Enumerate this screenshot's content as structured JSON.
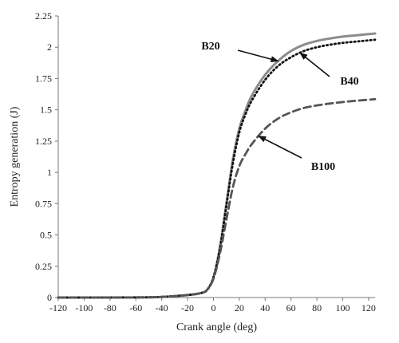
{
  "chart_data": {
    "type": "line",
    "title": "",
    "xlabel": "Crank angle (deg)",
    "ylabel": "Entropy generation (J)",
    "xlim": [
      -120,
      125
    ],
    "ylim": [
      0,
      2.25
    ],
    "x_ticks": [
      -120,
      -100,
      -80,
      -60,
      -40,
      -20,
      0,
      20,
      40,
      60,
      80,
      100,
      120
    ],
    "y_ticks": [
      0,
      0.25,
      0.5,
      0.75,
      1,
      1.25,
      1.5,
      1.75,
      2,
      2.25
    ],
    "y_tick_labels": [
      "0",
      "0.25",
      "0.5",
      "0.75",
      "1",
      "1.25",
      "1.5",
      "1.75",
      "2",
      "2.25"
    ],
    "grid": false,
    "legend": "none (series identified by arrow annotations)",
    "series": [
      {
        "name": "B20",
        "style": "solid",
        "color": "#8c8c8c",
        "x": [
          -120,
          -60,
          -40,
          -20,
          -10,
          -5,
          0,
          5,
          10,
          15,
          20,
          25,
          30,
          40,
          50,
          60,
          70,
          80,
          90,
          100,
          110,
          125
        ],
        "y": [
          0,
          0.001,
          0.005,
          0.02,
          0.035,
          0.06,
          0.16,
          0.4,
          0.75,
          1.1,
          1.35,
          1.5,
          1.62,
          1.78,
          1.89,
          1.97,
          2.02,
          2.05,
          2.07,
          2.085,
          2.095,
          2.11
        ]
      },
      {
        "name": "B40",
        "style": "dotted",
        "color": "#111111",
        "x": [
          -120,
          -60,
          -40,
          -20,
          -10,
          -5,
          0,
          5,
          10,
          15,
          20,
          25,
          30,
          40,
          50,
          60,
          70,
          80,
          90,
          100,
          110,
          125
        ],
        "y": [
          0,
          0.001,
          0.005,
          0.02,
          0.035,
          0.06,
          0.16,
          0.39,
          0.73,
          1.07,
          1.32,
          1.47,
          1.58,
          1.74,
          1.85,
          1.92,
          1.97,
          2.0,
          2.02,
          2.035,
          2.045,
          2.06
        ]
      },
      {
        "name": "B100",
        "style": "dashed",
        "color": "#555555",
        "x": [
          -120,
          -60,
          -40,
          -20,
          -10,
          -5,
          0,
          5,
          10,
          15,
          20,
          25,
          30,
          40,
          50,
          60,
          70,
          80,
          90,
          100,
          110,
          125
        ],
        "y": [
          0,
          0.001,
          0.005,
          0.02,
          0.035,
          0.06,
          0.15,
          0.35,
          0.62,
          0.88,
          1.05,
          1.15,
          1.23,
          1.35,
          1.43,
          1.48,
          1.515,
          1.535,
          1.55,
          1.562,
          1.572,
          1.585
        ]
      }
    ],
    "annotations": [
      {
        "text": "B20",
        "points_to_series": "B20",
        "at_x": 50
      },
      {
        "text": "B40",
        "points_to_series": "B40",
        "at_x": 67
      },
      {
        "text": "B100",
        "points_to_series": "B100",
        "at_x": 35
      }
    ]
  }
}
